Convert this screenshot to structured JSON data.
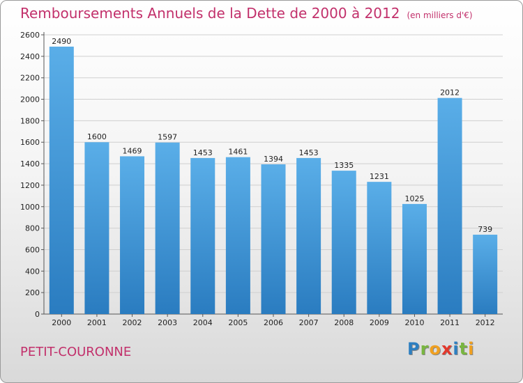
{
  "title": "Remboursements Annuels de la Dette de 2000 à 2012",
  "subtitle": "(en milliers d'€)",
  "place": "PETIT-COURONNE",
  "logo": {
    "text": "Proxiti",
    "letters": [
      {
        "ch": "P",
        "color": "#2d7fc1"
      },
      {
        "ch": "r",
        "color": "#79b640"
      },
      {
        "ch": "o",
        "color": "#f0a020"
      },
      {
        "ch": "x",
        "color": "#e2382c"
      },
      {
        "ch": "i",
        "color": "#2d7fc1"
      },
      {
        "ch": "t",
        "color": "#79b640"
      },
      {
        "ch": "i",
        "color": "#f0a020"
      }
    ]
  },
  "colors": {
    "accent": "#c2306b",
    "bar_top": "#5aaee8",
    "bar_bottom": "#2a7cc0"
  },
  "chart_data": {
    "type": "bar",
    "categories": [
      "2000",
      "2001",
      "2002",
      "2003",
      "2004",
      "2005",
      "2006",
      "2007",
      "2008",
      "2009",
      "2010",
      "2011",
      "2012"
    ],
    "values": [
      2490,
      1600,
      1469,
      1597,
      1453,
      1461,
      1394,
      1453,
      1335,
      1231,
      1025,
      2012,
      739
    ],
    "yticks": [
      0,
      200,
      400,
      600,
      800,
      1000,
      1200,
      1400,
      1600,
      1800,
      2000,
      2200,
      2400,
      2600
    ],
    "ylim": [
      0,
      2600
    ],
    "grid": true
  }
}
